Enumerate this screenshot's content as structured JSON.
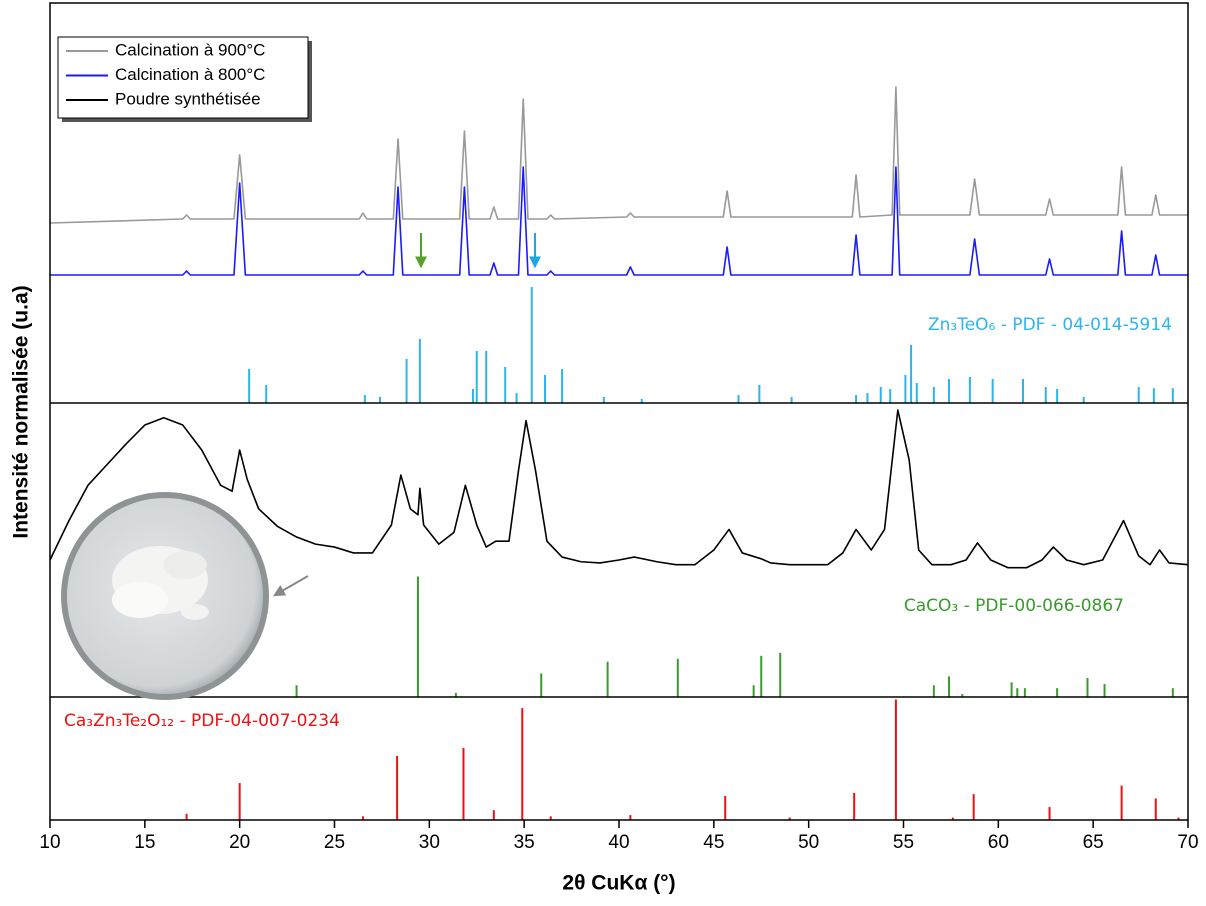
{
  "chart_data": [
    {
      "type": "line",
      "xlim": [
        10,
        70
      ],
      "ylim": [
        0,
        100
      ],
      "legend": "upper left",
      "series": [
        {
          "name": "Calcination à 900°C",
          "type": "line",
          "color": "#999999",
          "x": [
            10,
            17,
            17.2,
            17.4,
            19.7,
            20,
            20.3,
            26.3,
            26.5,
            26.7,
            28.1,
            28.35,
            28.6,
            31.6,
            31.85,
            32.1,
            33.2,
            33.4,
            33.6,
            34.7,
            34.95,
            35.2,
            36.2,
            36.4,
            36.6,
            40.4,
            40.6,
            40.8,
            45.5,
            45.7,
            45.9,
            52.3,
            52.5,
            52.7,
            54.4,
            54.6,
            54.8,
            58.5,
            58.75,
            59,
            62.5,
            62.7,
            62.9,
            66.3,
            66.5,
            66.7,
            68.1,
            68.3,
            68.5,
            70
          ],
          "values": [
            45,
            46,
            47,
            46,
            46,
            62,
            46,
            46,
            47.5,
            46,
            46,
            66,
            46,
            46,
            68,
            46,
            46,
            49,
            46,
            46,
            76,
            46,
            46,
            47,
            46,
            46.5,
            47.5,
            46.5,
            46.5,
            53,
            46.5,
            46.5,
            57,
            46.5,
            47,
            79,
            47,
            47,
            56,
            47,
            47,
            51,
            47,
            47,
            59,
            47,
            47,
            52,
            47,
            47
          ]
        },
        {
          "name": "Calcination à 800°C",
          "type": "line",
          "color": "#1a1aff",
          "x": [
            10,
            17,
            17.2,
            17.4,
            19.7,
            20,
            20.3,
            26.3,
            26.5,
            26.7,
            28.1,
            28.35,
            28.6,
            31.6,
            31.85,
            32.1,
            33.2,
            33.4,
            33.6,
            34.7,
            34.95,
            35.2,
            36.2,
            36.4,
            36.6,
            40.4,
            40.6,
            40.8,
            45.5,
            45.7,
            45.9,
            52.3,
            52.5,
            52.7,
            54.4,
            54.6,
            54.8,
            58.5,
            58.75,
            59,
            62.5,
            62.7,
            62.9,
            66.3,
            66.5,
            66.7,
            68.1,
            68.3,
            68.5,
            70
          ],
          "values": [
            32,
            32,
            33,
            32,
            32,
            55,
            32,
            32,
            33,
            32,
            32,
            54,
            32,
            32,
            54,
            32,
            32,
            35,
            32,
            32,
            59,
            32,
            32,
            33,
            32,
            32,
            34,
            32,
            32,
            39,
            32,
            32,
            42,
            32,
            32,
            59,
            32,
            32,
            41,
            32,
            32,
            36,
            32,
            32,
            43,
            32,
            32,
            37,
            32,
            32
          ]
        },
        {
          "name": "Zn₃TeO₆ - PDF - 04-014-5914",
          "type": "stick",
          "color": "#2bb5ec",
          "x": [
            20.5,
            21.4,
            26.6,
            27.4,
            28.8,
            29.5,
            32.3,
            32.5,
            33,
            34,
            34.6,
            35.4,
            36.1,
            37,
            39.2,
            41.2,
            46.3,
            47.4,
            49.1,
            52.5,
            53.1,
            53.8,
            54.3,
            55.1,
            55.4,
            55.7,
            56.6,
            57.4,
            58.5,
            59.7,
            61.3,
            62.5,
            63.1,
            64.5,
            67.4,
            68.2,
            69.2
          ],
          "values": [
            8.5,
            4.5,
            2,
            1.5,
            11,
            16,
            3.5,
            13,
            13,
            9,
            2.5,
            29,
            7,
            8.5,
            1.5,
            1,
            2,
            4.5,
            1.5,
            2,
            2.5,
            4,
            3.5,
            7,
            14.5,
            5,
            4,
            6,
            6.5,
            6,
            6,
            4,
            3.5,
            1.5,
            4,
            3.7,
            3.7
          ]
        }
      ]
    },
    {
      "type": "line",
      "xlim": [
        10,
        70
      ],
      "ylim": [
        0,
        100
      ],
      "ylabel": "Intensité normalisée (u.a)",
      "series": [
        {
          "name": "Poudre synthétisée",
          "type": "line",
          "color": "#000000",
          "x": [
            10,
            11,
            12,
            13,
            14,
            15,
            16,
            17,
            18,
            19,
            19.6,
            20,
            20.4,
            21,
            22,
            23,
            24,
            25,
            26,
            27,
            28,
            28.5,
            29,
            29.4,
            29.5,
            29.7,
            30.5,
            31.3,
            31.9,
            32.5,
            33,
            33.5,
            34.2,
            34.7,
            35.1,
            35.6,
            36.2,
            37,
            38,
            39,
            40,
            40.8,
            42,
            43,
            44,
            45,
            45.8,
            46.5,
            47.5,
            48,
            49,
            50,
            51,
            51.8,
            52.5,
            53.3,
            54,
            54.7,
            55.3,
            55.8,
            56.5,
            57.5,
            58.3,
            58.9,
            59.6,
            60.5,
            61.5,
            62.3,
            62.9,
            63.6,
            64.5,
            65.5,
            66.6,
            67.4,
            68,
            68.5,
            69,
            70
          ],
          "values": [
            46.6,
            60,
            72,
            79,
            86,
            92.5,
            95,
            92.5,
            84,
            72,
            70,
            84,
            74,
            64,
            58,
            54.4,
            52,
            51,
            49,
            49,
            58.5,
            75.5,
            64,
            62,
            71,
            58.5,
            52,
            56,
            72,
            58.5,
            51,
            53,
            53,
            77,
            94,
            77,
            53,
            47.6,
            46,
            45.6,
            46.6,
            47.6,
            46,
            45,
            45,
            50,
            57,
            49,
            47,
            45.6,
            45,
            45,
            45,
            49,
            57,
            50,
            57,
            97.6,
            80.6,
            50,
            45,
            45,
            46.6,
            52.4,
            46.6,
            44,
            44,
            46.6,
            51,
            46.6,
            45,
            46.6,
            60,
            48,
            45,
            50,
            45.6,
            45
          ]
        },
        {
          "name": "CaCO₃ - PDF-00-066-0867",
          "type": "stick",
          "color": "#3a9a2e",
          "x": [
            23,
            29.4,
            31.4,
            35.9,
            39.4,
            43.1,
            47.1,
            47.5,
            48.5,
            56.6,
            57.4,
            58.1,
            60.7,
            61,
            61.4,
            63.1,
            64.7,
            65.6,
            69.2
          ],
          "values": [
            4,
            41,
            1.4,
            8,
            12,
            13,
            4,
            14,
            15,
            4,
            7,
            1,
            5,
            3,
            3,
            3,
            6.5,
            4.4,
            3
          ]
        }
      ]
    },
    {
      "type": "line",
      "xlim": [
        10,
        70
      ],
      "ylim": [
        0,
        100
      ],
      "xticks": [
        10,
        15,
        20,
        25,
        30,
        35,
        40,
        45,
        50,
        55,
        60,
        65,
        70
      ],
      "xlabel": "2θ CuKα (°)",
      "series": [
        {
          "name": "Ca₃Zn₃Te₂O₁₂ - PDF-04-007-0234",
          "type": "stick",
          "color": "#ee1111",
          "x": [
            17.2,
            20,
            26.5,
            28.3,
            31.8,
            33.4,
            34.9,
            36.4,
            40.6,
            45.6,
            49,
            52.4,
            54.6,
            57.6,
            58.7,
            62.7,
            66.5,
            68.3,
            69.5
          ],
          "values": [
            5,
            30,
            3,
            52,
            58.5,
            8,
            91,
            3,
            4,
            19.5,
            2,
            22,
            98,
            2,
            21,
            10.5,
            28,
            17.5,
            2
          ]
        }
      ]
    }
  ]
}
